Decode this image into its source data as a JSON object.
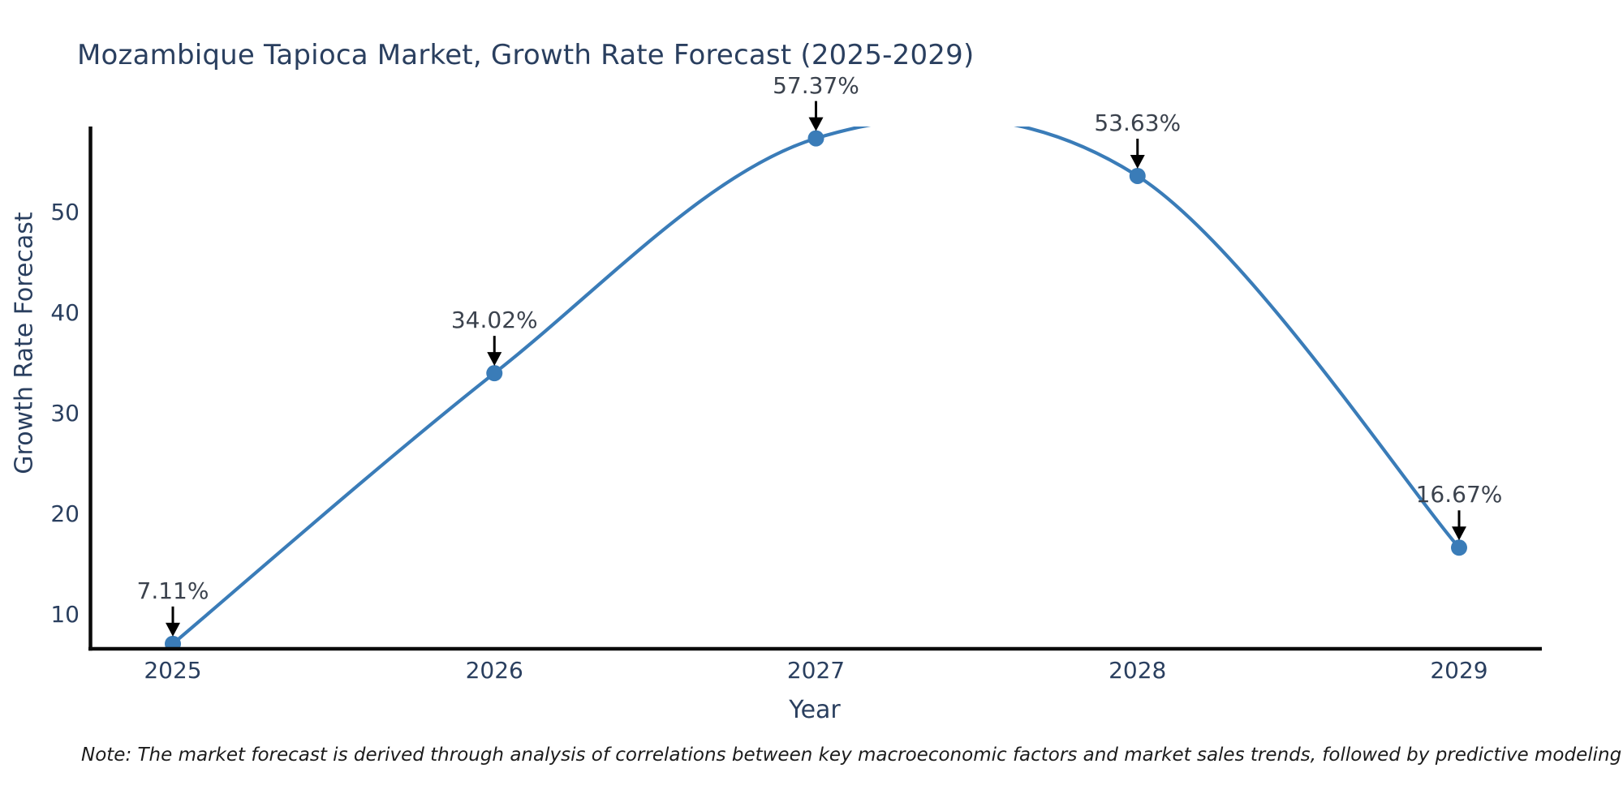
{
  "chart_data": {
    "type": "line",
    "curve": "spline",
    "title": "Mozambique Tapioca Market, Growth Rate Forecast (2025-2029)",
    "xlabel": "Year",
    "ylabel": "Growth Rate Forecast",
    "categories": [
      "2025",
      "2026",
      "2027",
      "2028",
      "2029"
    ],
    "series": [
      {
        "name": "Growth Rate Forecast",
        "values": [
          7.11,
          34.02,
          57.37,
          53.63,
          16.67
        ]
      }
    ],
    "point_labels": [
      "7.11%",
      "34.02%",
      "57.37%",
      "53.63%",
      "16.67%"
    ],
    "yticks": [
      10,
      20,
      30,
      40,
      50
    ],
    "ylim": [
      6.6,
      58.3
    ],
    "grid": "off",
    "legend": "none",
    "colors": {
      "line": "#3a7cb8",
      "marker": "#3a7cb8",
      "axis": "#0a0a0a",
      "text": "#2a3f5f",
      "annotation_text": "#3b424d",
      "annotation_arrow": "#000000"
    }
  },
  "note": "Note: The market forecast is derived through analysis of correlations between key macroeconomic factors and market sales trends, followed by predictive modeling to project future sales"
}
